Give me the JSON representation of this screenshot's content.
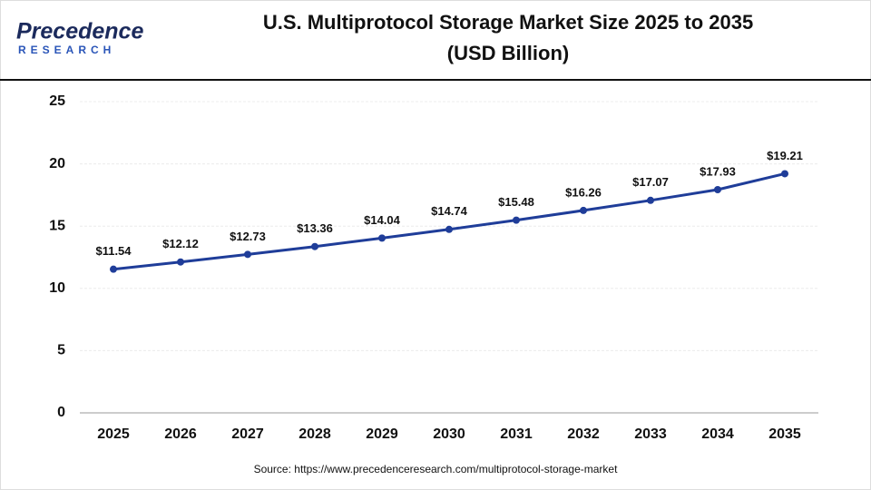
{
  "logo": {
    "name": "Precedence",
    "tagline": "RESEARCH"
  },
  "chart_data": {
    "type": "line",
    "title": "U.S. Multiprotocol Storage Market Size 2025 to 2035",
    "subtitle": "(USD Billion)",
    "categories": [
      "2025",
      "2026",
      "2027",
      "2028",
      "2029",
      "2030",
      "2031",
      "2032",
      "2033",
      "2034",
      "2035"
    ],
    "values": [
      11.54,
      12.12,
      12.73,
      13.36,
      14.04,
      14.74,
      15.48,
      16.26,
      17.07,
      17.93,
      19.21
    ],
    "value_labels": [
      "$11.54",
      "$12.12",
      "$12.73",
      "$13.36",
      "$14.04",
      "$14.74",
      "$15.48",
      "$16.26",
      "$17.07",
      "$17.93",
      "$19.21"
    ],
    "color": "#1f3d99",
    "ylim": [
      0,
      25
    ],
    "yticks": [
      0,
      5,
      10,
      15,
      20,
      25
    ],
    "grid": true,
    "source": "Source: https://www.precedenceresearch.com/multiprotocol-storage-market"
  }
}
